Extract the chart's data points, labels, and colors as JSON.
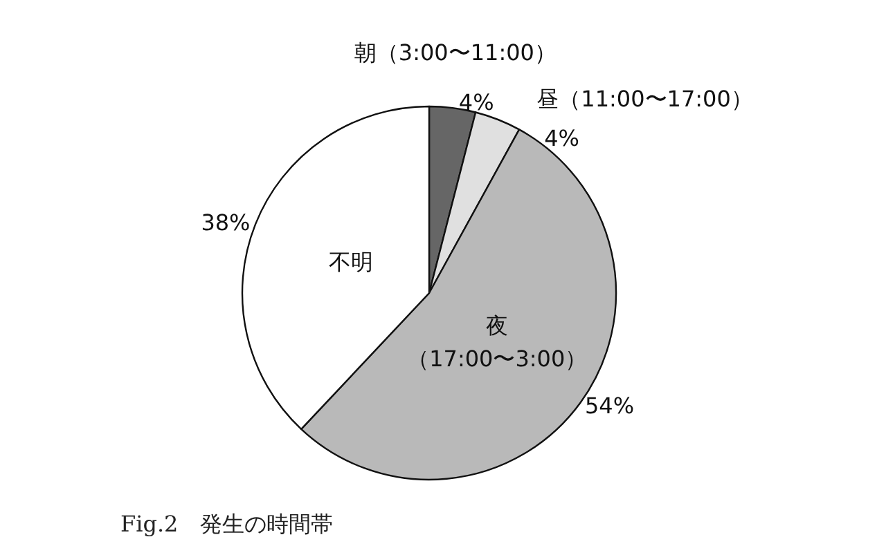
{
  "chart_data": {
    "type": "pie",
    "title": "Fig.2　発生の時間帯",
    "categories": [
      "朝（3:00〜11:00）",
      "昼（11:00〜17:00）",
      "夜（17:00〜3:00）",
      "不明"
    ],
    "values": [
      4,
      4,
      54,
      38
    ],
    "colors": [
      "#666666",
      "#e0e0e0",
      "#b9b9b9",
      "#ffffff"
    ],
    "value_labels": [
      "4%",
      "4%",
      "54%",
      "38%"
    ],
    "legend": false
  }
}
